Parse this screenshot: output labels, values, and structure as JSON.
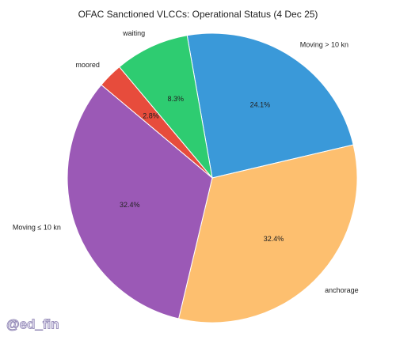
{
  "chart_data": {
    "type": "pie",
    "title": "OFAC Sanctioned VLCCs: Operational Status (4 Dec 25)",
    "categories": [
      "Moving > 10 kn",
      "anchorage",
      "Moving ≤ 10 kn",
      "moored",
      "waiting"
    ],
    "values": [
      24.1,
      32.4,
      32.4,
      2.8,
      8.3
    ],
    "value_labels": [
      "24.1%",
      "32.4%",
      "32.4%",
      "2.8%",
      "8.3%"
    ],
    "colors": [
      "#3a99d9",
      "#fdbf6f",
      "#9b59b6",
      "#e74c3c",
      "#2ecc71"
    ]
  },
  "watermark": "@ed_fin"
}
